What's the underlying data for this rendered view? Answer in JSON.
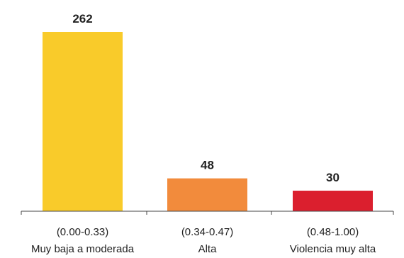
{
  "chart_data": {
    "type": "bar",
    "categories": [
      {
        "range": "(0.00-0.33)",
        "name": "Muy baja a moderada"
      },
      {
        "range": "(0.34-0.47)",
        "name": "Alta"
      },
      {
        "range": "(0.48-1.00)",
        "name": "Violencia muy alta"
      }
    ],
    "values": [
      262,
      48,
      30
    ],
    "colors": [
      "#F9CB2A",
      "#F28B3C",
      "#DB1F2E"
    ],
    "value_labels": [
      "262",
      "48",
      "30"
    ],
    "ylim": [
      0,
      262
    ],
    "grid": false,
    "legend": "none"
  }
}
